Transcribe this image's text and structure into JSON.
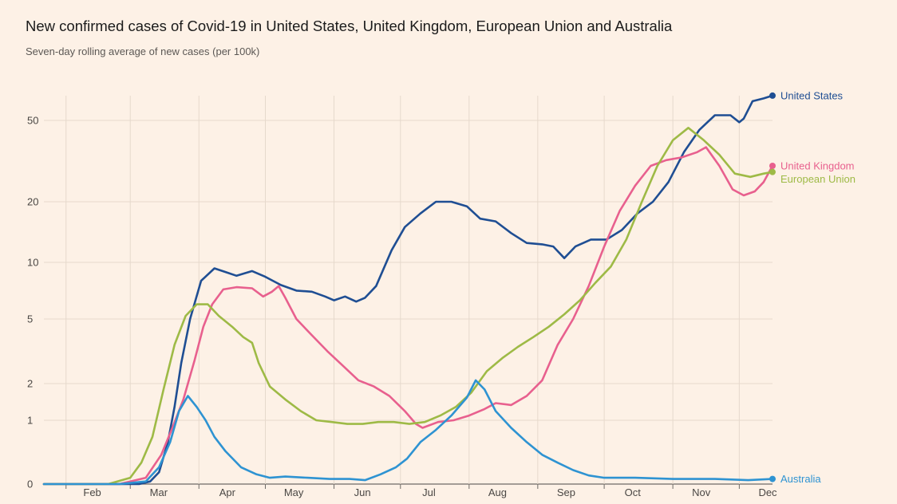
{
  "chart_data": {
    "type": "line",
    "title": "New confirmed cases of Covid-19 in United States, United Kingdom, European Union and Australia",
    "subtitle": "Seven-day rolling average of new cases (per 100k)",
    "xlabel": "",
    "ylabel": "",
    "y_scale": "log",
    "y_ticks": [
      0,
      1,
      2,
      5,
      10,
      20,
      50
    ],
    "x_tick_labels": [
      "Feb",
      "Mar",
      "Apr",
      "May",
      "Jun",
      "Jul",
      "Aug",
      "Sep",
      "Oct",
      "Nov",
      "Dec"
    ],
    "x_range": [
      "2020-01-22",
      "2020-12-16"
    ],
    "grid": true,
    "legend": "end-of-line labels",
    "series": [
      {
        "name": "United States",
        "color": "#1f4e93",
        "points": [
          [
            "2020-01-22",
            0
          ],
          [
            "2020-02-15",
            0
          ],
          [
            "2020-03-05",
            0
          ],
          [
            "2020-03-10",
            0.02
          ],
          [
            "2020-03-14",
            0.1
          ],
          [
            "2020-03-18",
            0.5
          ],
          [
            "2020-03-21",
            1.3
          ],
          [
            "2020-03-24",
            2.7
          ],
          [
            "2020-03-28",
            5.0
          ],
          [
            "2020-04-02",
            8.0
          ],
          [
            "2020-04-08",
            9.3
          ],
          [
            "2020-04-13",
            8.9
          ],
          [
            "2020-04-18",
            8.5
          ],
          [
            "2020-04-25",
            9.0
          ],
          [
            "2020-05-01",
            8.4
          ],
          [
            "2020-05-08",
            7.6
          ],
          [
            "2020-05-15",
            7.1
          ],
          [
            "2020-05-22",
            7.0
          ],
          [
            "2020-05-28",
            6.6
          ],
          [
            "2020-06-01",
            6.3
          ],
          [
            "2020-06-06",
            6.6
          ],
          [
            "2020-06-11",
            6.2
          ],
          [
            "2020-06-15",
            6.5
          ],
          [
            "2020-06-20",
            7.5
          ],
          [
            "2020-06-27",
            11.5
          ],
          [
            "2020-07-03",
            15.0
          ],
          [
            "2020-07-10",
            17.5
          ],
          [
            "2020-07-17",
            20.0
          ],
          [
            "2020-07-24",
            20.0
          ],
          [
            "2020-07-31",
            19.0
          ],
          [
            "2020-08-06",
            16.5
          ],
          [
            "2020-08-13",
            16.0
          ],
          [
            "2020-08-20",
            14.0
          ],
          [
            "2020-08-27",
            12.5
          ],
          [
            "2020-09-03",
            12.3
          ],
          [
            "2020-09-08",
            12.0
          ],
          [
            "2020-09-13",
            10.5
          ],
          [
            "2020-09-18",
            12.0
          ],
          [
            "2020-09-25",
            13.0
          ],
          [
            "2020-10-02",
            13.0
          ],
          [
            "2020-10-09",
            14.5
          ],
          [
            "2020-10-16",
            17.5
          ],
          [
            "2020-10-23",
            20.0
          ],
          [
            "2020-10-30",
            25.0
          ],
          [
            "2020-11-06",
            35.0
          ],
          [
            "2020-11-13",
            45.0
          ],
          [
            "2020-11-20",
            53.0
          ],
          [
            "2020-11-27",
            53.0
          ],
          [
            "2020-12-01",
            49.0
          ],
          [
            "2020-12-03",
            51.0
          ],
          [
            "2020-12-07",
            62.0
          ],
          [
            "2020-12-12",
            64.0
          ],
          [
            "2020-12-16",
            66.0
          ]
        ]
      },
      {
        "name": "United Kingdom",
        "color": "#e8608e",
        "points": [
          [
            "2020-01-22",
            0
          ],
          [
            "2020-02-25",
            0
          ],
          [
            "2020-03-08",
            0.05
          ],
          [
            "2020-03-15",
            0.3
          ],
          [
            "2020-03-20",
            0.8
          ],
          [
            "2020-03-25",
            1.5
          ],
          [
            "2020-03-30",
            2.8
          ],
          [
            "2020-04-03",
            4.5
          ],
          [
            "2020-04-07",
            6.0
          ],
          [
            "2020-04-12",
            7.2
          ],
          [
            "2020-04-18",
            7.4
          ],
          [
            "2020-04-25",
            7.3
          ],
          [
            "2020-04-30",
            6.6
          ],
          [
            "2020-05-04",
            7.0
          ],
          [
            "2020-05-07",
            7.5
          ],
          [
            "2020-05-10",
            6.5
          ],
          [
            "2020-05-15",
            5.0
          ],
          [
            "2020-05-22",
            4.0
          ],
          [
            "2020-05-29",
            3.2
          ],
          [
            "2020-06-05",
            2.6
          ],
          [
            "2020-06-12",
            2.1
          ],
          [
            "2020-06-19",
            1.9
          ],
          [
            "2020-06-26",
            1.6
          ],
          [
            "2020-07-03",
            1.2
          ],
          [
            "2020-07-08",
            0.9
          ],
          [
            "2020-07-11",
            0.8
          ],
          [
            "2020-07-18",
            0.95
          ],
          [
            "2020-07-25",
            1.0
          ],
          [
            "2020-08-01",
            1.1
          ],
          [
            "2020-08-08",
            1.25
          ],
          [
            "2020-08-13",
            1.4
          ],
          [
            "2020-08-20",
            1.35
          ],
          [
            "2020-08-27",
            1.6
          ],
          [
            "2020-09-03",
            2.1
          ],
          [
            "2020-09-10",
            3.5
          ],
          [
            "2020-09-17",
            5.0
          ],
          [
            "2020-09-24",
            7.5
          ],
          [
            "2020-10-01",
            12.0
          ],
          [
            "2020-10-08",
            18.0
          ],
          [
            "2020-10-15",
            24.0
          ],
          [
            "2020-10-22",
            30.0
          ],
          [
            "2020-10-29",
            32.0
          ],
          [
            "2020-11-05",
            33.0
          ],
          [
            "2020-11-12",
            35.0
          ],
          [
            "2020-11-16",
            37.0
          ],
          [
            "2020-11-22",
            30.0
          ],
          [
            "2020-11-28",
            23.0
          ],
          [
            "2020-12-03",
            21.5
          ],
          [
            "2020-12-08",
            22.5
          ],
          [
            "2020-12-12",
            25.0
          ],
          [
            "2020-12-16",
            30.0
          ]
        ]
      },
      {
        "name": "European Union",
        "color": "#9eba46",
        "points": [
          [
            "2020-01-22",
            0
          ],
          [
            "2020-02-20",
            0
          ],
          [
            "2020-03-01",
            0.05
          ],
          [
            "2020-03-06",
            0.2
          ],
          [
            "2020-03-11",
            0.6
          ],
          [
            "2020-03-16",
            1.8
          ],
          [
            "2020-03-21",
            3.5
          ],
          [
            "2020-03-26",
            5.2
          ],
          [
            "2020-03-31",
            6.0
          ],
          [
            "2020-04-05",
            6.0
          ],
          [
            "2020-04-10",
            5.2
          ],
          [
            "2020-04-16",
            4.5
          ],
          [
            "2020-04-21",
            3.9
          ],
          [
            "2020-04-25",
            3.6
          ],
          [
            "2020-04-28",
            2.7
          ],
          [
            "2020-05-03",
            1.9
          ],
          [
            "2020-05-10",
            1.5
          ],
          [
            "2020-05-17",
            1.2
          ],
          [
            "2020-05-24",
            1.0
          ],
          [
            "2020-05-31",
            0.95
          ],
          [
            "2020-06-07",
            0.9
          ],
          [
            "2020-06-14",
            0.9
          ],
          [
            "2020-06-21",
            0.95
          ],
          [
            "2020-06-28",
            0.95
          ],
          [
            "2020-07-05",
            0.9
          ],
          [
            "2020-07-12",
            0.95
          ],
          [
            "2020-07-19",
            1.1
          ],
          [
            "2020-07-26",
            1.3
          ],
          [
            "2020-08-02",
            1.7
          ],
          [
            "2020-08-09",
            2.4
          ],
          [
            "2020-08-16",
            2.9
          ],
          [
            "2020-08-23",
            3.4
          ],
          [
            "2020-08-30",
            3.9
          ],
          [
            "2020-09-06",
            4.5
          ],
          [
            "2020-09-13",
            5.3
          ],
          [
            "2020-09-20",
            6.3
          ],
          [
            "2020-09-27",
            7.8
          ],
          [
            "2020-10-04",
            9.5
          ],
          [
            "2020-10-11",
            13.0
          ],
          [
            "2020-10-18",
            20.0
          ],
          [
            "2020-10-25",
            30.0
          ],
          [
            "2020-11-01",
            40.0
          ],
          [
            "2020-11-08",
            46.0
          ],
          [
            "2020-11-15",
            40.0
          ],
          [
            "2020-11-22",
            34.0
          ],
          [
            "2020-11-29",
            27.5
          ],
          [
            "2020-12-06",
            26.5
          ],
          [
            "2020-12-12",
            27.5
          ],
          [
            "2020-12-16",
            28.0
          ]
        ]
      },
      {
        "name": "Australia",
        "color": "#2e93d2",
        "points": [
          [
            "2020-01-22",
            0
          ],
          [
            "2020-02-25",
            0
          ],
          [
            "2020-03-08",
            0.02
          ],
          [
            "2020-03-14",
            0.15
          ],
          [
            "2020-03-19",
            0.5
          ],
          [
            "2020-03-23",
            1.2
          ],
          [
            "2020-03-27",
            1.6
          ],
          [
            "2020-03-31",
            1.3
          ],
          [
            "2020-04-04",
            1.0
          ],
          [
            "2020-04-08",
            0.6
          ],
          [
            "2020-04-13",
            0.35
          ],
          [
            "2020-04-20",
            0.15
          ],
          [
            "2020-04-27",
            0.08
          ],
          [
            "2020-05-03",
            0.05
          ],
          [
            "2020-05-10",
            0.06
          ],
          [
            "2020-05-20",
            0.05
          ],
          [
            "2020-05-30",
            0.04
          ],
          [
            "2020-06-08",
            0.04
          ],
          [
            "2020-06-15",
            0.03
          ],
          [
            "2020-06-22",
            0.08
          ],
          [
            "2020-06-29",
            0.15
          ],
          [
            "2020-07-04",
            0.25
          ],
          [
            "2020-07-10",
            0.5
          ],
          [
            "2020-07-17",
            0.75
          ],
          [
            "2020-07-24",
            1.1
          ],
          [
            "2020-07-31",
            1.55
          ],
          [
            "2020-08-04",
            2.1
          ],
          [
            "2020-08-08",
            1.8
          ],
          [
            "2020-08-13",
            1.2
          ],
          [
            "2020-08-20",
            0.8
          ],
          [
            "2020-08-27",
            0.5
          ],
          [
            "2020-09-03",
            0.3
          ],
          [
            "2020-09-10",
            0.2
          ],
          [
            "2020-09-17",
            0.12
          ],
          [
            "2020-09-24",
            0.07
          ],
          [
            "2020-10-01",
            0.05
          ],
          [
            "2020-10-15",
            0.05
          ],
          [
            "2020-11-01",
            0.04
          ],
          [
            "2020-11-20",
            0.04
          ],
          [
            "2020-12-05",
            0.03
          ],
          [
            "2020-12-16",
            0.04
          ]
        ]
      }
    ]
  }
}
